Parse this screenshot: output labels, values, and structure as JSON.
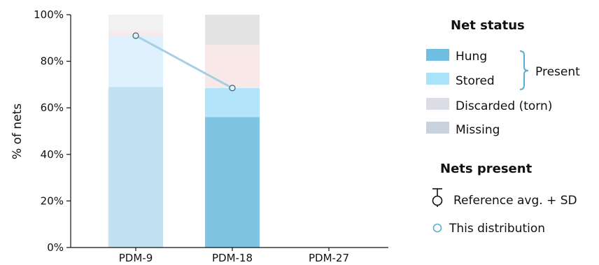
{
  "chart_data": {
    "type": "bar",
    "stacked": true,
    "categories": [
      "PDM-9",
      "PDM-18",
      "PDM-27"
    ],
    "ylabel": "% of nets",
    "ylim": [
      0,
      100
    ],
    "yticks": [
      "0%",
      "20%",
      "40%",
      "60%",
      "80%",
      "100%"
    ],
    "series": [
      {
        "name": "Hung",
        "values": [
          69,
          56,
          null
        ]
      },
      {
        "name": "Stored",
        "values": [
          22,
          12.5,
          null
        ]
      },
      {
        "name": "Discarded (torn)",
        "values": [
          2,
          18.5,
          null
        ]
      },
      {
        "name": "Missing",
        "values": [
          7,
          13,
          null
        ]
      }
    ],
    "nets_present_line": {
      "name": "This distribution",
      "values": [
        91,
        68.5,
        null
      ]
    },
    "legend": {
      "status_heading": "Net status",
      "items": [
        "Hung",
        "Stored",
        "Discarded (torn)",
        "Missing"
      ],
      "group_label": "Present",
      "present_heading": "Nets present",
      "reference_label": "Reference avg. + SD",
      "distribution_label": "This distribution",
      "position": "right"
    },
    "colors": {
      "hung_muted": "#c0e1f1",
      "hung": "#7fc4e3",
      "stored_muted": "#def1fc",
      "stored": "#b2e5fb",
      "discarded_muted": "#f7eaea",
      "discarded": "#f8e8e8",
      "missing_muted": "#f1f1f1",
      "missing": "#e3e3e3",
      "legend_hung": "#6fbfe2",
      "legend_stored": "#a9e3f9",
      "legend_discarded": "#dcdce6",
      "legend_missing": "#c9d3de",
      "line": "#a6cfe4",
      "marker": "#5aaed2",
      "bracket": "#5aaed2"
    },
    "grid": false
  }
}
